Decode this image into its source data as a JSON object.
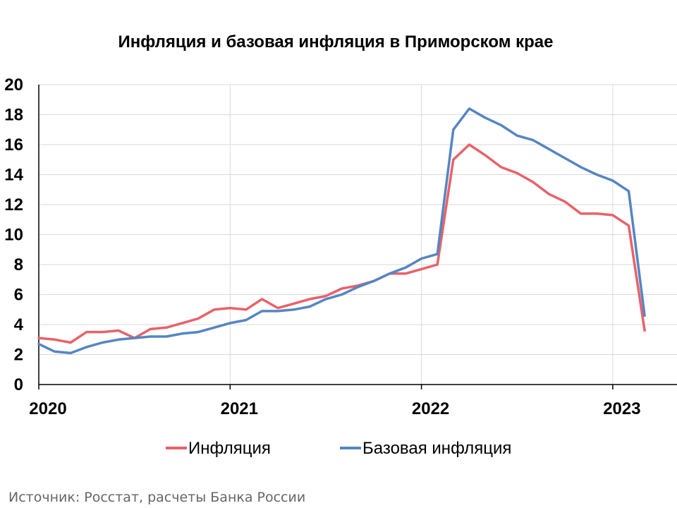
{
  "chart_data": {
    "type": "line",
    "title": "Инфляция и базовая инфляция в Приморском крае",
    "xlabel": "",
    "ylabel": "",
    "ylim": [
      0,
      20
    ],
    "yticks": [
      "0",
      "2",
      "4",
      "6",
      "8",
      "10",
      "12",
      "14",
      "16",
      "18",
      "20"
    ],
    "xticks": [
      "2020",
      "2021",
      "2022",
      "2023"
    ],
    "x_start": "2020-01",
    "x": [
      "2020-01",
      "2020-02",
      "2020-03",
      "2020-04",
      "2020-05",
      "2020-06",
      "2020-07",
      "2020-08",
      "2020-09",
      "2020-10",
      "2020-11",
      "2020-12",
      "2021-01",
      "2021-02",
      "2021-03",
      "2021-04",
      "2021-05",
      "2021-06",
      "2021-07",
      "2021-08",
      "2021-09",
      "2021-10",
      "2021-11",
      "2021-12",
      "2022-01",
      "2022-02",
      "2022-03",
      "2022-04",
      "2022-05",
      "2022-06",
      "2022-07",
      "2022-08",
      "2022-09",
      "2022-10",
      "2022-11",
      "2022-12",
      "2023-01",
      "2023-02",
      "2023-03"
    ],
    "grid": true,
    "legend_position": "bottom",
    "series": [
      {
        "name": "Инфляция",
        "color": "#e8626a",
        "values": [
          3.1,
          3.0,
          2.8,
          3.5,
          3.5,
          3.6,
          3.1,
          3.7,
          3.8,
          4.1,
          4.4,
          5.0,
          5.1,
          5.0,
          5.7,
          5.1,
          5.4,
          5.7,
          5.9,
          6.4,
          6.6,
          6.9,
          7.4,
          7.4,
          7.7,
          8.0,
          15.0,
          16.0,
          15.3,
          14.5,
          14.1,
          13.5,
          12.7,
          12.2,
          11.4,
          11.4,
          11.3,
          10.6,
          3.6
        ]
      },
      {
        "name": "Базовая инфляция",
        "color": "#5585c3",
        "values": [
          2.7,
          2.2,
          2.1,
          2.5,
          2.8,
          3.0,
          3.1,
          3.2,
          3.2,
          3.4,
          3.5,
          3.8,
          4.1,
          4.3,
          4.9,
          4.9,
          5.0,
          5.2,
          5.7,
          6.0,
          6.5,
          6.9,
          7.4,
          7.8,
          8.4,
          8.7,
          17.0,
          18.4,
          17.8,
          17.3,
          16.6,
          16.3,
          15.7,
          15.1,
          14.5,
          14.0,
          13.6,
          12.9,
          4.6
        ]
      }
    ]
  },
  "source_note": "Источник: Росстат, расчеты Банка России"
}
